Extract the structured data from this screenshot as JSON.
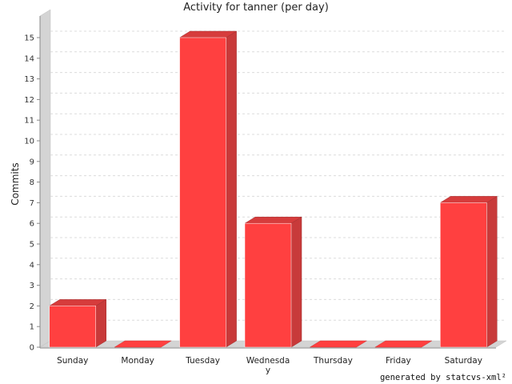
{
  "chart_data": {
    "type": "bar",
    "title": "Activity for tanner (per day)",
    "xlabel": "",
    "ylabel": "Commits",
    "categories": [
      "Sunday",
      "Monday",
      "Tuesday",
      "Wednesday",
      "Thursday",
      "Friday",
      "Saturday"
    ],
    "category_label_lines": [
      [
        "Sunday"
      ],
      [
        "Monday"
      ],
      [
        "Tuesday"
      ],
      [
        "Wednesda",
        "y"
      ],
      [
        "Thursday"
      ],
      [
        "Friday"
      ],
      [
        "Saturday"
      ]
    ],
    "values": [
      2,
      0,
      15,
      6,
      0,
      0,
      7
    ],
    "ylim": [
      0,
      15
    ],
    "yticks": [
      0,
      1,
      2,
      3,
      4,
      5,
      6,
      7,
      8,
      9,
      10,
      11,
      12,
      13,
      14,
      15
    ],
    "grid": true,
    "bar_color": "#ff4040",
    "bar_side_color": "#c83a3a",
    "bar_top_color": "#d63c3c"
  },
  "footer": {
    "text": "generated by statcvs-xml²"
  }
}
